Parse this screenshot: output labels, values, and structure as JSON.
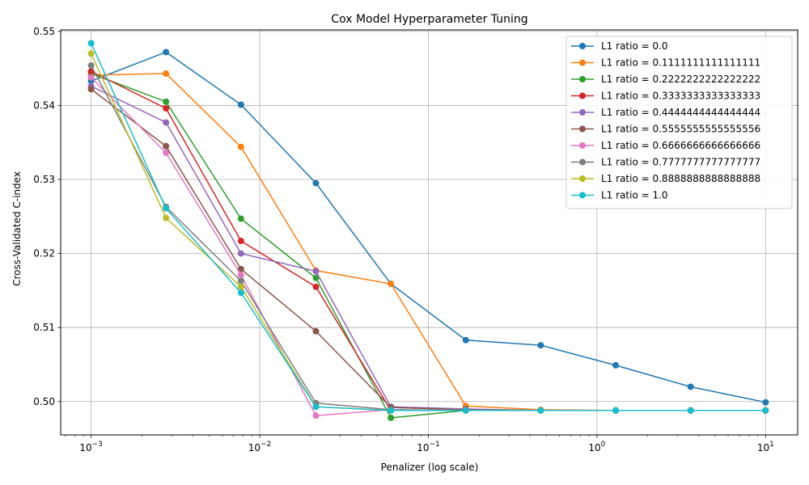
{
  "chart_data": {
    "type": "line",
    "title": "Cox Model Hyperparameter Tuning",
    "xlabel": "Penalizer (log scale)",
    "ylabel": "Cross-Validated C-index",
    "xscale": "log",
    "xlim": [
      0.00066,
      15.5
    ],
    "ylim": [
      0.4955,
      0.5502
    ],
    "yticks": [
      0.5,
      0.51,
      0.52,
      0.53,
      0.54,
      0.55
    ],
    "ytick_labels": [
      "0.50",
      "0.51",
      "0.52",
      "0.53",
      "0.54",
      "0.55"
    ],
    "xticks": [
      {
        "value": 0.001,
        "base": "10",
        "exp": "−3"
      },
      {
        "value": 0.01,
        "base": "10",
        "exp": "−2"
      },
      {
        "value": 0.1,
        "base": "10",
        "exp": "−1"
      },
      {
        "value": 1,
        "base": "10",
        "exp": "0"
      },
      {
        "value": 10,
        "base": "10",
        "exp": "1"
      }
    ],
    "grid": true,
    "legend_position": "top-right",
    "x": [
      0.001,
      0.00278,
      0.00774,
      0.02154,
      0.05995,
      0.16681,
      0.46416,
      1.29155,
      3.59381,
      10.0
    ],
    "series": [
      {
        "name": "L1 ratio = 0.0",
        "color": "#1f77b4",
        "values": [
          0.5433,
          0.5472,
          0.5401,
          0.5295,
          0.5159,
          0.5083,
          0.5076,
          0.5049,
          0.502,
          0.4999
        ]
      },
      {
        "name": "L1 ratio = 0.1111111111111111",
        "color": "#ff7f0e",
        "values": [
          0.5441,
          0.5443,
          0.5344,
          0.5177,
          0.5159,
          0.4994,
          0.4989,
          0.4988,
          0.4988,
          0.4988
        ]
      },
      {
        "name": "L1 ratio = 0.2222222222222222",
        "color": "#2ca02c",
        "values": [
          0.5443,
          0.5405,
          0.5247,
          0.5167,
          0.4978,
          0.4988,
          0.4988,
          0.4988,
          0.4988,
          0.4988
        ]
      },
      {
        "name": "L1 ratio = 0.3333333333333333",
        "color": "#d62728",
        "values": [
          0.5446,
          0.5396,
          0.5217,
          0.5155,
          0.4988,
          0.4988,
          0.4988,
          0.4988,
          0.4988,
          0.4988
        ]
      },
      {
        "name": "L1 ratio = 0.4444444444444444",
        "color": "#9467bd",
        "values": [
          0.5426,
          0.5377,
          0.52,
          0.5176,
          0.4993,
          0.499,
          0.4988,
          0.4988,
          0.4988,
          0.4988
        ]
      },
      {
        "name": "L1 ratio = 0.5555555555555556",
        "color": "#8c564b",
        "values": [
          0.5422,
          0.5345,
          0.5179,
          0.5095,
          0.4992,
          0.4989,
          0.4988,
          0.4988,
          0.4988,
          0.4988
        ]
      },
      {
        "name": "L1 ratio = 0.6666666666666666",
        "color": "#e377c2",
        "values": [
          0.5438,
          0.5336,
          0.5171,
          0.4981,
          0.4989,
          0.4988,
          0.4988,
          0.4988,
          0.4988,
          0.4988
        ]
      },
      {
        "name": "L1 ratio = 0.7777777777777777",
        "color": "#7f7f7f",
        "values": [
          0.5454,
          0.5263,
          0.5163,
          0.4998,
          0.4989,
          0.4988,
          0.4988,
          0.4988,
          0.4988,
          0.4988
        ]
      },
      {
        "name": "L1 ratio = 0.8888888888888888",
        "color": "#bcbd22",
        "values": [
          0.547,
          0.5248,
          0.5155,
          0.4993,
          0.4988,
          0.4988,
          0.4988,
          0.4988,
          0.4988,
          0.4988
        ]
      },
      {
        "name": "L1 ratio = 1.0",
        "color": "#17becf",
        "values": [
          0.5484,
          0.5261,
          0.5147,
          0.4993,
          0.4988,
          0.4988,
          0.4988,
          0.4988,
          0.4988,
          0.4988
        ]
      }
    ]
  }
}
